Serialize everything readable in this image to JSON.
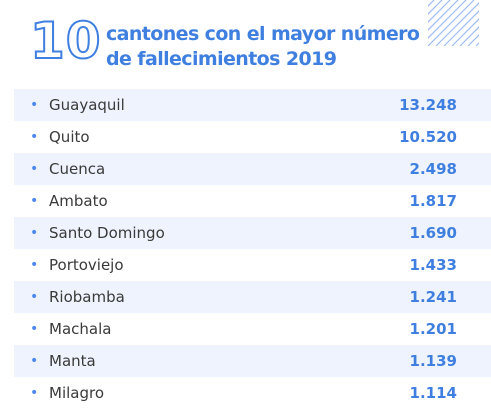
{
  "header": {
    "number": "10",
    "title_line1": "cantones con el mayor número",
    "title_line2": "de fallecimientos 2019"
  },
  "colors": {
    "accent": "#3f7fe0",
    "row_shade": "#eef3fd",
    "text": "#3a3a3a"
  },
  "bullet_glyph": "•",
  "chart_data": {
    "type": "table",
    "title": "10 cantones con el mayor número de fallecimientos 2019",
    "rows": [
      {
        "canton": "Guayaquil",
        "value": "13.248"
      },
      {
        "canton": "Quito",
        "value": "10.520"
      },
      {
        "canton": "Cuenca",
        "value": "2.498"
      },
      {
        "canton": "Ambato",
        "value": "1.817"
      },
      {
        "canton": "Santo Domingo",
        "value": "1.690"
      },
      {
        "canton": "Portoviejo",
        "value": "1.433"
      },
      {
        "canton": "Riobamba",
        "value": "1.241"
      },
      {
        "canton": "Machala",
        "value": "1.201"
      },
      {
        "canton": "Manta",
        "value": "1.139"
      },
      {
        "canton": "Milagro",
        "value": "1.114"
      }
    ]
  }
}
